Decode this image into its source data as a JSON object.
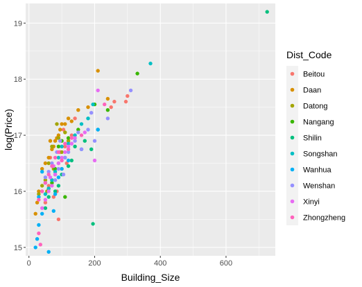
{
  "chart_data": {
    "type": "scatter",
    "title": "",
    "xlabel": "Building_Size",
    "ylabel": "log(Price)",
    "xlim": [
      -10,
      750
    ],
    "ylim": [
      14.85,
      19.35
    ],
    "xticks": [
      0,
      200,
      400,
      600
    ],
    "yticks": [
      15,
      16,
      17,
      18,
      19
    ],
    "grid": true,
    "legend": {
      "title": "Dist_Code",
      "placement": "right"
    },
    "series": [
      {
        "name": "Beitou",
        "color": "#F8766D",
        "points": [
          [
            80,
            16.3
          ],
          [
            85,
            16.0
          ],
          [
            90,
            16.5
          ],
          [
            95,
            16.7
          ],
          [
            75,
            15.9
          ],
          [
            100,
            16.4
          ],
          [
            110,
            16.8
          ],
          [
            70,
            16.2
          ],
          [
            65,
            16.6
          ],
          [
            120,
            16.9
          ],
          [
            130,
            17.0
          ],
          [
            105,
            17.1
          ],
          [
            60,
            16.1
          ],
          [
            90,
            15.5
          ],
          [
            140,
            17.3
          ],
          [
            115,
            16.5
          ],
          [
            250,
            17.5
          ],
          [
            260,
            17.6
          ],
          [
            295,
            17.6
          ],
          [
            300,
            17.7
          ],
          [
            50,
            15.8
          ],
          [
            40,
            16.0
          ]
        ]
      },
      {
        "name": "Daan",
        "color": "#D89000",
        "points": [
          [
            210,
            18.15
          ],
          [
            150,
            17.45
          ],
          [
            130,
            17.25
          ],
          [
            120,
            17.3
          ],
          [
            110,
            17.2
          ],
          [
            100,
            17.2
          ],
          [
            95,
            17.1
          ],
          [
            90,
            17.0
          ],
          [
            80,
            16.9
          ],
          [
            75,
            16.8
          ],
          [
            60,
            16.6
          ],
          [
            50,
            16.5
          ],
          [
            40,
            16.4
          ],
          [
            30,
            16.0
          ],
          [
            25,
            15.8
          ],
          [
            20,
            15.6
          ],
          [
            180,
            17.5
          ],
          [
            85,
            16.95
          ],
          [
            70,
            16.75
          ],
          [
            65,
            16.9
          ],
          [
            240,
            17.65
          ]
        ]
      },
      {
        "name": "Datong",
        "color": "#A3A500",
        "points": [
          [
            110,
            17.05
          ],
          [
            90,
            16.95
          ],
          [
            85,
            17.2
          ],
          [
            70,
            16.8
          ],
          [
            60,
            16.5
          ],
          [
            50,
            16.2
          ],
          [
            40,
            16.1
          ],
          [
            30,
            15.95
          ],
          [
            100,
            16.7
          ],
          [
            120,
            16.9
          ],
          [
            75,
            16.4
          ],
          [
            55,
            16.0
          ]
        ]
      },
      {
        "name": "Nangang",
        "color": "#39B600",
        "points": [
          [
            330,
            18.1
          ],
          [
            240,
            17.45
          ],
          [
            200,
            17.55
          ],
          [
            150,
            17.1
          ],
          [
            120,
            16.95
          ],
          [
            100,
            16.9
          ],
          [
            90,
            16.8
          ],
          [
            80,
            16.4
          ],
          [
            70,
            16.15
          ],
          [
            110,
            15.9
          ],
          [
            60,
            16.05
          ]
        ]
      },
      {
        "name": "Shilin",
        "color": "#00BF7D",
        "points": [
          [
            725,
            19.2
          ],
          [
            195,
            15.42
          ],
          [
            190,
            16.75
          ],
          [
            130,
            16.55
          ],
          [
            120,
            16.45
          ],
          [
            110,
            16.6
          ],
          [
            100,
            16.3
          ],
          [
            90,
            16.1
          ],
          [
            80,
            16.0
          ],
          [
            60,
            15.9
          ],
          [
            50,
            15.7
          ],
          [
            140,
            16.8
          ],
          [
            170,
            16.9
          ]
        ]
      },
      {
        "name": "Songshan",
        "color": "#00BFC4",
        "points": [
          [
            370,
            18.28
          ],
          [
            195,
            17.55
          ],
          [
            180,
            17.3
          ],
          [
            160,
            17.2
          ],
          [
            140,
            17.0
          ],
          [
            120,
            16.85
          ],
          [
            100,
            16.8
          ],
          [
            90,
            16.6
          ],
          [
            80,
            16.35
          ],
          [
            70,
            16.2
          ],
          [
            60,
            16.05
          ],
          [
            50,
            15.95
          ],
          [
            210,
            17.1
          ]
        ]
      },
      {
        "name": "Wanhua",
        "color": "#00B0F6",
        "points": [
          [
            20,
            15.0
          ],
          [
            25,
            15.15
          ],
          [
            30,
            15.4
          ],
          [
            40,
            15.6
          ],
          [
            60,
            14.92
          ],
          [
            75,
            15.65
          ],
          [
            80,
            15.95
          ],
          [
            50,
            16.15
          ],
          [
            40,
            16.35
          ],
          [
            90,
            16.25
          ],
          [
            160,
            16.75
          ],
          [
            210,
            17.1
          ],
          [
            120,
            16.55
          ],
          [
            100,
            16.4
          ],
          [
            30,
            15.9
          ]
        ]
      },
      {
        "name": "Wenshan",
        "color": "#9590FF",
        "points": [
          [
            310,
            17.8
          ],
          [
            240,
            17.3
          ],
          [
            200,
            16.9
          ],
          [
            180,
            17.1
          ],
          [
            160,
            16.75
          ],
          [
            140,
            16.9
          ],
          [
            120,
            16.7
          ],
          [
            100,
            16.55
          ],
          [
            90,
            16.4
          ],
          [
            80,
            16.2
          ],
          [
            70,
            16.5
          ],
          [
            60,
            16.35
          ],
          [
            50,
            16.25
          ],
          [
            110,
            16.6
          ],
          [
            130,
            16.85
          ],
          [
            150,
            17.05
          ],
          [
            190,
            17.4
          ],
          [
            85,
            16.7
          ],
          [
            95,
            16.9
          ],
          [
            105,
            16.3
          ]
        ]
      },
      {
        "name": "Xinyi",
        "color": "#E76BF3",
        "points": [
          [
            210,
            17.8
          ],
          [
            200,
            16.55
          ],
          [
            170,
            17.05
          ],
          [
            140,
            16.95
          ],
          [
            120,
            16.8
          ],
          [
            100,
            16.6
          ],
          [
            90,
            16.5
          ],
          [
            80,
            16.3
          ],
          [
            70,
            16.1
          ],
          [
            60,
            16.0
          ],
          [
            50,
            15.85
          ],
          [
            40,
            15.7
          ],
          [
            110,
            16.7
          ],
          [
            130,
            16.85
          ],
          [
            75,
            16.45
          ],
          [
            65,
            16.25
          ]
        ]
      },
      {
        "name": "Zhongzheng",
        "color": "#FF62BC",
        "points": [
          [
            230,
            17.55
          ],
          [
            160,
            17.0
          ],
          [
            130,
            16.95
          ],
          [
            110,
            16.85
          ],
          [
            90,
            16.7
          ],
          [
            80,
            16.6
          ],
          [
            70,
            16.45
          ],
          [
            60,
            16.3
          ],
          [
            50,
            16.15
          ],
          [
            40,
            16.0
          ],
          [
            30,
            15.85
          ],
          [
            35,
            15.05
          ],
          [
            30,
            15.25
          ],
          [
            100,
            16.55
          ],
          [
            120,
            16.75
          ]
        ]
      }
    ]
  }
}
